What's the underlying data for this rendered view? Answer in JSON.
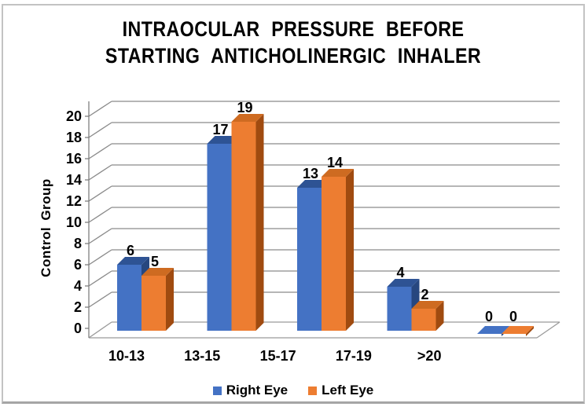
{
  "title": {
    "line1": "INTRAOCULAR PRESSURE BEFORE",
    "line2": "STARTING ANTICHOLINERGIC INHALER"
  },
  "chart_data": {
    "type": "bar",
    "style": "3d-clustered-column",
    "title": "INTRAOCULAR PRESSURE BEFORE STARTING ANTICHOLINERGIC INHALER",
    "categories": [
      "10-13",
      "13-15",
      "15-17",
      "17-19",
      ">20"
    ],
    "series": [
      {
        "name": "Right Eye",
        "values": [
          6,
          17,
          13,
          4,
          0
        ],
        "color": "#4472C4",
        "color_top": "#2E5394",
        "color_side": "#27477F"
      },
      {
        "name": "Left Eye",
        "values": [
          5,
          19,
          14,
          2,
          0
        ],
        "color": "#ED7D31",
        "color_top": "#CE6B21",
        "color_side": "#A04B10"
      }
    ],
    "xlabel": "",
    "ylabel": "Control Group",
    "ylim": [
      0,
      20
    ],
    "yticks": [
      0,
      2,
      4,
      6,
      8,
      10,
      12,
      14,
      16,
      18,
      20
    ],
    "grid": true,
    "legend_position": "bottom",
    "data_labels": true
  },
  "colors": {
    "gridline": "#8A8A8A",
    "axis": "#7F7F7F",
    "floor": "#9A9A9A",
    "text": "#000000",
    "frame_border": "#C3C3C3",
    "background": "#FFFFFF"
  }
}
